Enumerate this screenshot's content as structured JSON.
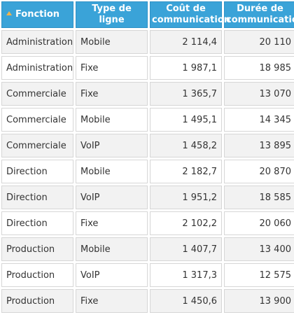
{
  "table": {
    "columns": [
      {
        "key": "fonction",
        "label": "Fonction"
      },
      {
        "key": "type",
        "label": "Type de ligne"
      },
      {
        "key": "cout",
        "label": "Coût de communication"
      },
      {
        "key": "duree",
        "label": "Durée de communication"
      }
    ],
    "sort": {
      "column": "Fonction",
      "direction": "ascending"
    },
    "header_color": "#3aa3d8",
    "sort_icon_color": "#f3b24a",
    "rows": [
      {
        "fonction": "Administration",
        "type": "Mobile",
        "cout": "2 114,4",
        "duree": "20 110"
      },
      {
        "fonction": "Administration",
        "type": "Fixe",
        "cout": "1 987,1",
        "duree": "18 985"
      },
      {
        "fonction": "Commerciale",
        "type": "Fixe",
        "cout": "1 365,7",
        "duree": "13 070"
      },
      {
        "fonction": "Commerciale",
        "type": "Mobile",
        "cout": "1 495,1",
        "duree": "14 345"
      },
      {
        "fonction": "Commerciale",
        "type": "VoIP",
        "cout": "1 458,2",
        "duree": "13 895"
      },
      {
        "fonction": "Direction",
        "type": "Mobile",
        "cout": "2 182,7",
        "duree": "20 870"
      },
      {
        "fonction": "Direction",
        "type": "VoIP",
        "cout": "1 951,2",
        "duree": "18 585"
      },
      {
        "fonction": "Direction",
        "type": "Fixe",
        "cout": "2 102,2",
        "duree": "20 060"
      },
      {
        "fonction": "Production",
        "type": "Mobile",
        "cout": "1 407,7",
        "duree": "13 400"
      },
      {
        "fonction": "Production",
        "type": "VoIP",
        "cout": "1 317,3",
        "duree": "12 575"
      },
      {
        "fonction": "Production",
        "type": "Fixe",
        "cout": "1 450,6",
        "duree": "13 900"
      }
    ]
  }
}
